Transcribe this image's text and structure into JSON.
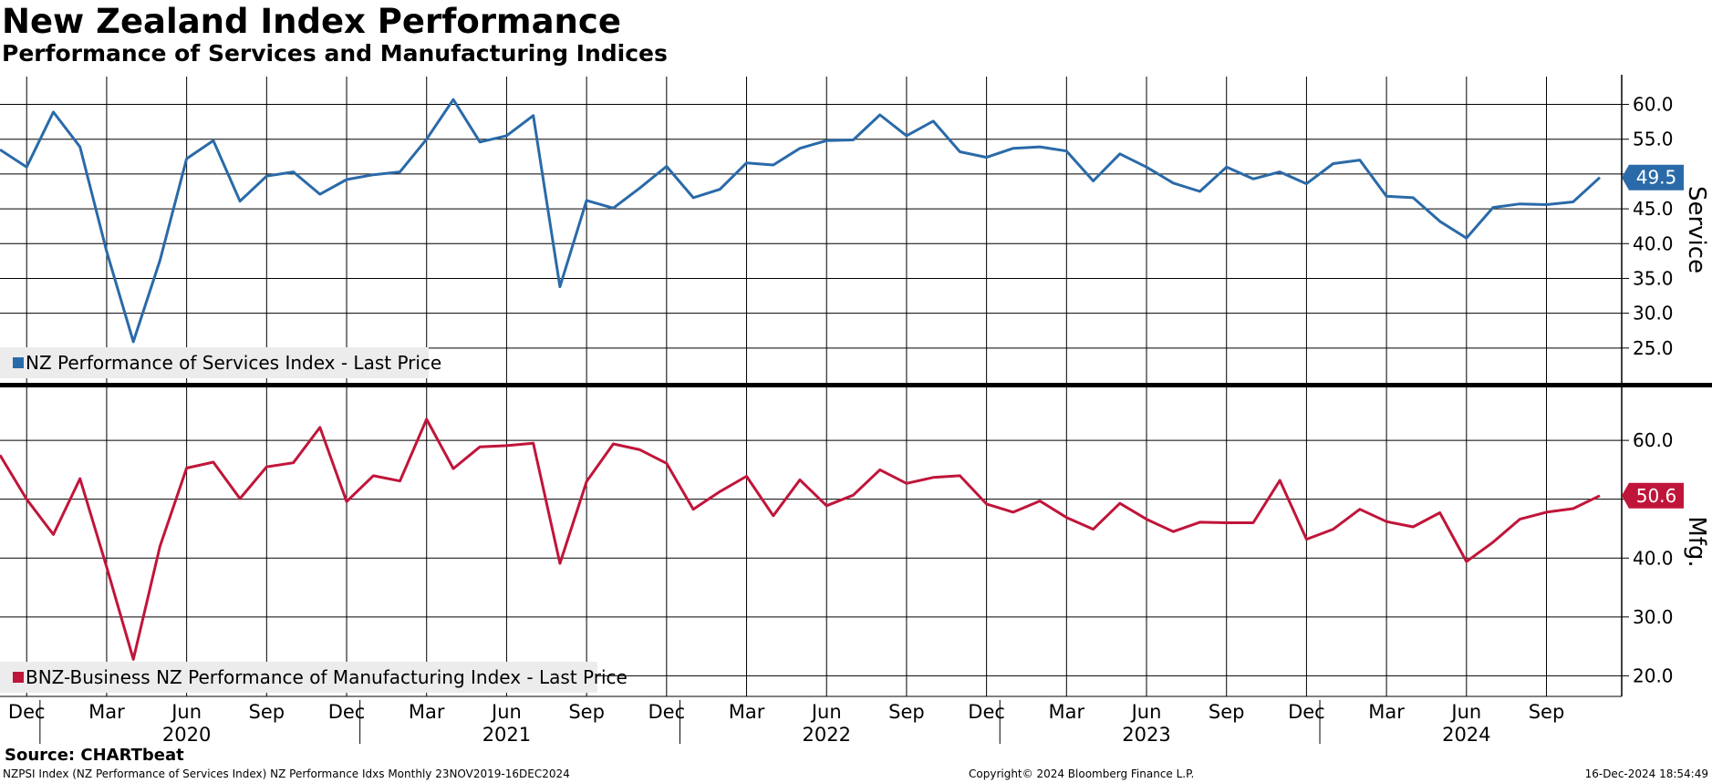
{
  "title": "New Zealand Index Performance",
  "subtitle": "Performance of Services and Manufacturing Indices",
  "source": "Source: CHARTbeat",
  "footer": {
    "left": "NZPSI Index (NZ Performance of Services Index) NZ Performance Idxs  Monthly 23NOV2019-16DEC2024",
    "center": "Copyright© 2024 Bloomberg Finance L.P.",
    "right": "16-Dec-2024 18:54:49"
  },
  "chart_data": [
    {
      "type": "line",
      "panel": "top",
      "ylabel": "Service",
      "ylim": [
        20,
        64
      ],
      "yticks": [
        "25.0",
        "30.0",
        "35.0",
        "40.0",
        "45.0",
        "50.0",
        "55.0",
        "60.0"
      ],
      "grid": true,
      "legend_position": "bottom-left",
      "color": "#2a6aa8",
      "last_value_label": "49.5",
      "series": [
        {
          "name": "NZ Performance of Services Index - Last Price",
          "x": [
            "2019-11",
            "2019-12",
            "2020-01",
            "2020-02",
            "2020-03",
            "2020-04",
            "2020-05",
            "2020-06",
            "2020-07",
            "2020-08",
            "2020-09",
            "2020-10",
            "2020-11",
            "2020-12",
            "2021-01",
            "2021-02",
            "2021-03",
            "2021-04",
            "2021-05",
            "2021-06",
            "2021-07",
            "2021-08",
            "2021-09",
            "2021-10",
            "2021-11",
            "2021-12",
            "2022-01",
            "2022-02",
            "2022-03",
            "2022-04",
            "2022-05",
            "2022-06",
            "2022-07",
            "2022-08",
            "2022-09",
            "2022-10",
            "2022-11",
            "2022-12",
            "2023-01",
            "2023-02",
            "2023-03",
            "2023-04",
            "2023-05",
            "2023-06",
            "2023-07",
            "2023-08",
            "2023-09",
            "2023-10",
            "2023-11",
            "2023-12",
            "2024-01",
            "2024-02",
            "2024-03",
            "2024-04",
            "2024-05",
            "2024-06",
            "2024-07",
            "2024-08",
            "2024-09",
            "2024-10",
            "2024-11"
          ],
          "values": [
            53.5,
            51.0,
            58.9,
            53.9,
            38.9,
            25.9,
            37.6,
            52.2,
            54.8,
            46.1,
            49.7,
            50.3,
            47.1,
            49.2,
            49.9,
            50.3,
            55.0,
            60.7,
            54.6,
            55.5,
            58.4,
            33.8,
            46.2,
            45.1,
            48.0,
            51.1,
            46.6,
            47.8,
            51.6,
            51.3,
            53.7,
            54.8,
            54.9,
            58.5,
            55.5,
            57.6,
            53.2,
            52.4,
            53.7,
            53.9,
            53.3,
            49.0,
            52.9,
            51.0,
            48.7,
            47.5,
            51.0,
            49.3,
            50.3,
            48.6,
            51.5,
            52.0,
            46.8,
            46.6,
            43.2,
            40.8,
            45.2,
            45.7,
            45.6,
            46.0,
            49.5
          ]
        }
      ]
    },
    {
      "type": "line",
      "panel": "bottom",
      "ylabel": "Mfg.",
      "ylim": [
        16.5,
        69
      ],
      "yticks": [
        "20.0",
        "30.0",
        "40.0",
        "50.0",
        "60.0"
      ],
      "grid": true,
      "legend_position": "bottom-left",
      "color": "#c0153a",
      "last_value_label": "50.6",
      "series": [
        {
          "name": "BNZ-Business NZ Performance of Manufacturing Index - Last Price",
          "x": [
            "2019-11",
            "2019-12",
            "2020-01",
            "2020-02",
            "2020-03",
            "2020-04",
            "2020-05",
            "2020-06",
            "2020-07",
            "2020-08",
            "2020-09",
            "2020-10",
            "2020-11",
            "2020-12",
            "2021-01",
            "2021-02",
            "2021-03",
            "2021-04",
            "2021-05",
            "2021-06",
            "2021-07",
            "2021-08",
            "2021-09",
            "2021-10",
            "2021-11",
            "2021-12",
            "2022-01",
            "2022-02",
            "2022-03",
            "2022-04",
            "2022-05",
            "2022-06",
            "2022-07",
            "2022-08",
            "2022-09",
            "2022-10",
            "2022-11",
            "2022-12",
            "2023-01",
            "2023-02",
            "2023-03",
            "2023-04",
            "2023-05",
            "2023-06",
            "2023-07",
            "2023-08",
            "2023-09",
            "2023-10",
            "2023-11",
            "2023-12",
            "2024-01",
            "2024-02",
            "2024-03",
            "2024-04",
            "2024-05",
            "2024-06",
            "2024-07",
            "2024-08",
            "2024-09",
            "2024-10",
            "2024-11"
          ],
          "values": [
            57.5,
            50.0,
            44.0,
            53.5,
            38.5,
            22.8,
            42.0,
            55.3,
            56.3,
            50.1,
            55.5,
            56.2,
            62.2,
            49.6,
            54.0,
            53.1,
            63.6,
            55.2,
            58.9,
            59.1,
            59.5,
            39.1,
            53.0,
            59.4,
            58.4,
            56.1,
            48.3,
            51.3,
            53.9,
            47.2,
            53.3,
            48.9,
            50.7,
            55.0,
            52.7,
            53.7,
            54.0,
            49.2,
            47.8,
            49.7,
            46.9,
            44.9,
            49.3,
            46.6,
            44.5,
            46.1,
            46.0,
            46.0,
            53.2,
            43.2,
            44.9,
            48.3,
            46.2,
            45.3,
            47.7,
            39.4,
            42.7,
            46.6,
            47.8,
            48.4,
            50.6
          ]
        }
      ]
    }
  ],
  "x_axis": {
    "month_labels": [
      {
        "label": "Dec",
        "date": "2019-12"
      },
      {
        "label": "Mar",
        "date": "2020-03"
      },
      {
        "label": "Jun",
        "date": "2020-06"
      },
      {
        "label": "Sep",
        "date": "2020-09"
      },
      {
        "label": "Dec",
        "date": "2020-12"
      },
      {
        "label": "Mar",
        "date": "2021-03"
      },
      {
        "label": "Jun",
        "date": "2021-06"
      },
      {
        "label": "Sep",
        "date": "2021-09"
      },
      {
        "label": "Dec",
        "date": "2021-12"
      },
      {
        "label": "Mar",
        "date": "2022-03"
      },
      {
        "label": "Jun",
        "date": "2022-06"
      },
      {
        "label": "Sep",
        "date": "2022-09"
      },
      {
        "label": "Dec",
        "date": "2022-12"
      },
      {
        "label": "Mar",
        "date": "2023-03"
      },
      {
        "label": "Jun",
        "date": "2023-06"
      },
      {
        "label": "Sep",
        "date": "2023-09"
      },
      {
        "label": "Dec",
        "date": "2023-12"
      },
      {
        "label": "Mar",
        "date": "2024-03"
      },
      {
        "label": "Jun",
        "date": "2024-06"
      },
      {
        "label": "Sep",
        "date": "2024-09"
      }
    ],
    "year_labels": [
      {
        "label": "2020",
        "date": "2020-06"
      },
      {
        "label": "2021",
        "date": "2021-06"
      },
      {
        "label": "2022",
        "date": "2022-06"
      },
      {
        "label": "2023",
        "date": "2023-06"
      },
      {
        "label": "2024",
        "date": "2024-06"
      }
    ]
  },
  "colors": {
    "services": "#2a6aa8",
    "manufacturing": "#c0153a",
    "grid": "#000000",
    "legend_bg": "#ececec"
  }
}
